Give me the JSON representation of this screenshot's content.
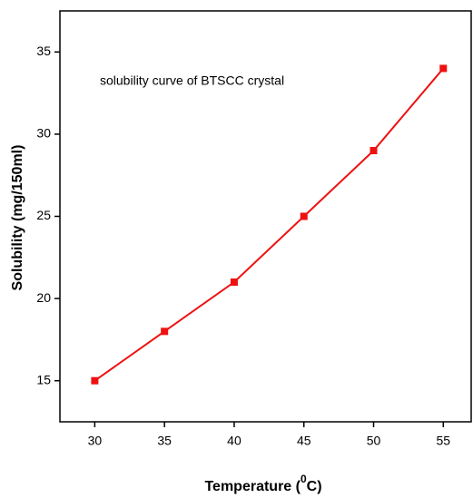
{
  "chart_data": {
    "type": "line",
    "annotation": "solubility curve of  BTSCC crystal",
    "ylabel": "Solubility (mg/150ml)",
    "xlabel": "Temperature (",
    "xlabel_sup": "0",
    "xlabel_end": "C)",
    "x": [
      30,
      35,
      40,
      45,
      50,
      55
    ],
    "series": [
      {
        "color": "#ee1111",
        "values": [
          15,
          18,
          21,
          25,
          29,
          34
        ]
      }
    ],
    "xlim": [
      27.5,
      57
    ],
    "xticks": [
      30,
      35,
      40,
      45,
      50,
      55
    ],
    "ylim": [
      12.5,
      37.5
    ],
    "yticks": [
      15,
      20,
      25,
      30,
      35
    ]
  }
}
